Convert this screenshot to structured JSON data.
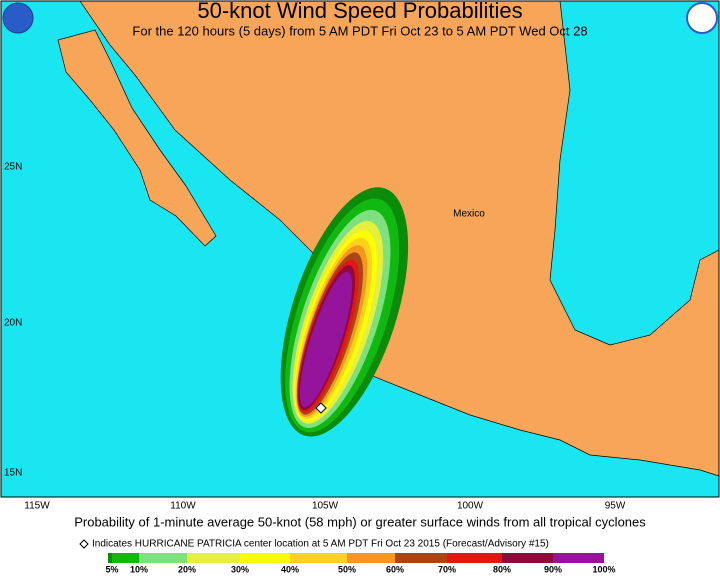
{
  "header": {
    "title": "50-knot Wind Speed Probabilities",
    "subtitle": "For the 120 hours (5 days) from 5 AM PDT Fri Oct 23 to 5 AM PDT Wed Oct 28"
  },
  "map": {
    "region_label": "Mexico",
    "lat_labels": [
      "25N",
      "20N",
      "15N"
    ],
    "lon_labels": [
      "115W",
      "110W",
      "105W",
      "100W",
      "95W"
    ]
  },
  "footer": {
    "caption": "Probability of 1-minute average 50-knot (58 mph) or greater surface winds from all tropical cyclones",
    "note": "Indicates HURRICANE PATRICIA center location at 5 AM PDT Fri Oct 23 2015 (Forecast/Advisory #15)"
  },
  "colorbar": {
    "labels": [
      "5%",
      "10%",
      "20%",
      "30%",
      "40%",
      "50%",
      "60%",
      "70%",
      "80%",
      "90%",
      "100%"
    ],
    "colors": [
      "#0a8c0a",
      "#12b812",
      "#7ee07e",
      "#e6f03c",
      "#ffff00",
      "#ffd21e",
      "#f5961e",
      "#aa4614",
      "#e61414",
      "#8c0a3c",
      "#96149b"
    ]
  }
}
